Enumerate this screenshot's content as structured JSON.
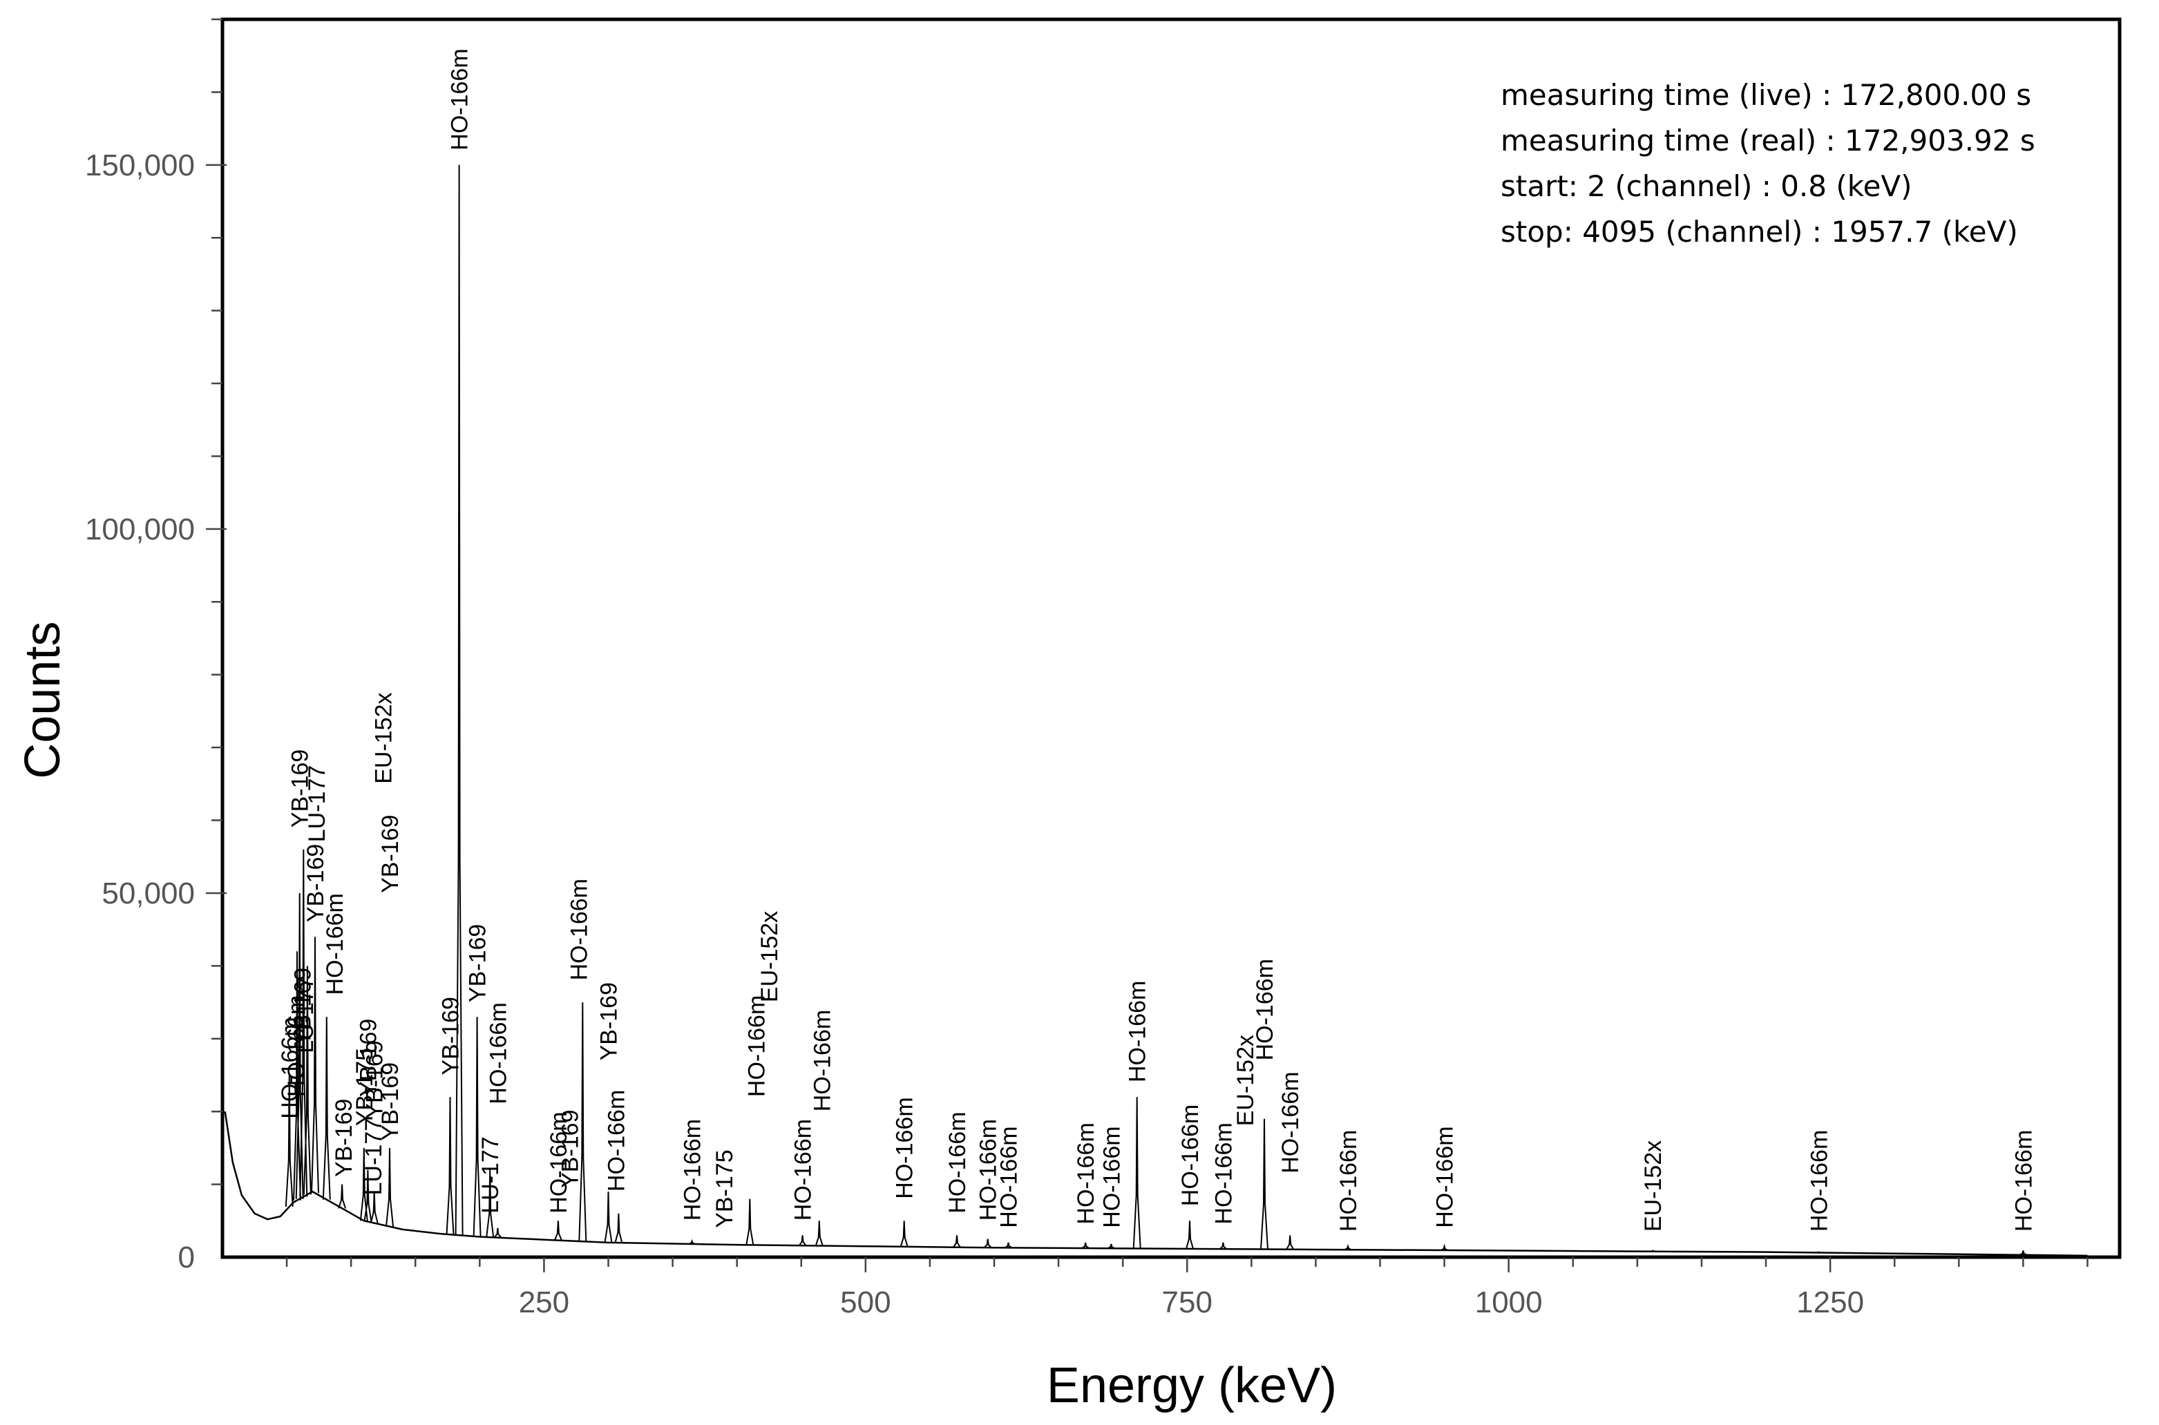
{
  "chart_data": {
    "type": "line",
    "title": "",
    "xlabel": "Energy (keV)",
    "ylabel": "Counts",
    "xlim": [
      0,
      1475
    ],
    "ylim": [
      0,
      170000
    ],
    "x_ticks": [
      250,
      500,
      750,
      1000,
      1250
    ],
    "x_tick_labels": [
      "250",
      "500",
      "750",
      "1000",
      "1250"
    ],
    "y_ticks": [
      0,
      50000,
      100000,
      150000
    ],
    "y_tick_labels": [
      "0",
      "50,000",
      "100,000",
      "150,000"
    ],
    "y_minor_step": 10000,
    "grid": false,
    "info": [
      "measuring time (live) : 172,800.00 s",
      "measuring time (real) : 172,903.92 s",
      "start: 2 (channel) : 0.8 (keV)",
      "stop: 4095 (channel) : 1957.7 (keV)"
    ],
    "baseline": [
      {
        "x": 2,
        "y": 20000
      },
      {
        "x": 8,
        "y": 13000
      },
      {
        "x": 15,
        "y": 8500
      },
      {
        "x": 25,
        "y": 6000
      },
      {
        "x": 35,
        "y": 5200
      },
      {
        "x": 45,
        "y": 5600
      },
      {
        "x": 55,
        "y": 7500
      },
      {
        "x": 70,
        "y": 9000
      },
      {
        "x": 90,
        "y": 7000
      },
      {
        "x": 110,
        "y": 5000
      },
      {
        "x": 140,
        "y": 3800
      },
      {
        "x": 170,
        "y": 3200
      },
      {
        "x": 200,
        "y": 2800
      },
      {
        "x": 250,
        "y": 2400
      },
      {
        "x": 300,
        "y": 2000
      },
      {
        "x": 400,
        "y": 1700
      },
      {
        "x": 500,
        "y": 1500
      },
      {
        "x": 600,
        "y": 1300
      },
      {
        "x": 700,
        "y": 1200
      },
      {
        "x": 800,
        "y": 1100
      },
      {
        "x": 900,
        "y": 1000
      },
      {
        "x": 1000,
        "y": 900
      },
      {
        "x": 1100,
        "y": 800
      },
      {
        "x": 1200,
        "y": 700
      },
      {
        "x": 1300,
        "y": 500
      },
      {
        "x": 1400,
        "y": 300
      },
      {
        "x": 1450,
        "y": 200
      }
    ],
    "peaks": [
      {
        "x": 52,
        "y": 25000
      },
      {
        "x": 58,
        "y": 42000
      },
      {
        "x": 60,
        "y": 50000
      },
      {
        "x": 63,
        "y": 56000
      },
      {
        "x": 66,
        "y": 40000
      },
      {
        "x": 72,
        "y": 44000
      },
      {
        "x": 81,
        "y": 33000
      },
      {
        "x": 93,
        "y": 10000
      },
      {
        "x": 110,
        "y": 15000
      },
      {
        "x": 113,
        "y": 12000
      },
      {
        "x": 118,
        "y": 9000
      },
      {
        "x": 130,
        "y": 15000
      },
      {
        "x": 177,
        "y": 22000
      },
      {
        "x": 184,
        "y": 150000
      },
      {
        "x": 198,
        "y": 33000
      },
      {
        "x": 208,
        "y": 12000
      },
      {
        "x": 214,
        "y": 4000
      },
      {
        "x": 261,
        "y": 5000
      },
      {
        "x": 280,
        "y": 35000
      },
      {
        "x": 300,
        "y": 9000
      },
      {
        "x": 308,
        "y": 6000
      },
      {
        "x": 365,
        "y": 2200
      },
      {
        "x": 410,
        "y": 8000
      },
      {
        "x": 451,
        "y": 3000
      },
      {
        "x": 464,
        "y": 5000
      },
      {
        "x": 530,
        "y": 5000
      },
      {
        "x": 571,
        "y": 3000
      },
      {
        "x": 595,
        "y": 2500
      },
      {
        "x": 611,
        "y": 2000
      },
      {
        "x": 671,
        "y": 2000
      },
      {
        "x": 691,
        "y": 1800
      },
      {
        "x": 711,
        "y": 22000
      },
      {
        "x": 752,
        "y": 5000
      },
      {
        "x": 778,
        "y": 2000
      },
      {
        "x": 810,
        "y": 19000
      },
      {
        "x": 830,
        "y": 3000
      },
      {
        "x": 875,
        "y": 1500
      },
      {
        "x": 950,
        "y": 1500
      },
      {
        "x": 1112,
        "y": 900
      },
      {
        "x": 1241,
        "y": 700
      },
      {
        "x": 1400,
        "y": 900
      }
    ],
    "peak_labels": [
      {
        "text": "YB-169",
        "x": 60,
        "y": 59000
      },
      {
        "text": "LU-177",
        "x": 73,
        "y": 57000
      },
      {
        "text": "YB-169",
        "x": 72,
        "y": 46000
      },
      {
        "text": "HO-166m",
        "x": 52,
        "y": 19000
      },
      {
        "text": "HO-166m",
        "x": 57,
        "y": 22000
      },
      {
        "text": "YB-169",
        "x": 62,
        "y": 29000
      },
      {
        "text": "LU-177",
        "x": 64,
        "y": 28000
      },
      {
        "text": "HO-166m",
        "x": 87,
        "y": 36000
      },
      {
        "text": "YB-169",
        "x": 94,
        "y": 11000
      },
      {
        "text": "YB-169",
        "x": 113,
        "y": 22000
      },
      {
        "text": "YB-175",
        "x": 110,
        "y": 18000
      },
      {
        "text": "YB-169",
        "x": 118,
        "y": 19000
      },
      {
        "text": "LU-177",
        "x": 117,
        "y": 8500
      },
      {
        "text": "YB-169",
        "x": 130,
        "y": 16000
      },
      {
        "text": "YB-169",
        "x": 130,
        "y": 50000
      },
      {
        "text": "EU-152x",
        "x": 125,
        "y": 65000
      },
      {
        "text": "YB-169",
        "x": 177,
        "y": 25000
      },
      {
        "text": "HO-166m",
        "x": 184,
        "y": 152000
      },
      {
        "text": "YB-169",
        "x": 198,
        "y": 35000
      },
      {
        "text": "HO-166m",
        "x": 214,
        "y": 21000
      },
      {
        "text": "LU-177",
        "x": 208,
        "y": 6000
      },
      {
        "text": "HO-166m",
        "x": 261,
        "y": 6000
      },
      {
        "text": "YB-169",
        "x": 270,
        "y": 9500
      },
      {
        "text": "HO-166m",
        "x": 277,
        "y": 38000
      },
      {
        "text": "YB-169",
        "x": 300,
        "y": 27000
      },
      {
        "text": "HO-166m",
        "x": 306,
        "y": 9000
      },
      {
        "text": "HO-166m",
        "x": 365,
        "y": 5000
      },
      {
        "text": "YB-175",
        "x": 390,
        "y": 4000
      },
      {
        "text": "HO-166m",
        "x": 415,
        "y": 22000
      },
      {
        "text": "EU-152x",
        "x": 425,
        "y": 35000
      },
      {
        "text": "HO-166m",
        "x": 451,
        "y": 5000
      },
      {
        "text": "HO-166m",
        "x": 466,
        "y": 20000
      },
      {
        "text": "HO-166m",
        "x": 530,
        "y": 8000
      },
      {
        "text": "HO-166m",
        "x": 571,
        "y": 6000
      },
      {
        "text": "HO-166m",
        "x": 595,
        "y": 5000
      },
      {
        "text": "HO-166m",
        "x": 611,
        "y": 4000
      },
      {
        "text": "HO-166m",
        "x": 671,
        "y": 4500
      },
      {
        "text": "HO-166m",
        "x": 691,
        "y": 4000
      },
      {
        "text": "HO-166m",
        "x": 711,
        "y": 24000
      },
      {
        "text": "HO-166m",
        "x": 752,
        "y": 7000
      },
      {
        "text": "HO-166m",
        "x": 778,
        "y": 4500
      },
      {
        "text": "EU-152x",
        "x": 795,
        "y": 18000
      },
      {
        "text": "HO-166m",
        "x": 810,
        "y": 27000
      },
      {
        "text": "HO-166m",
        "x": 830,
        "y": 11500
      },
      {
        "text": "HO-166m",
        "x": 875,
        "y": 3500
      },
      {
        "text": "HO-166m",
        "x": 950,
        "y": 4000
      },
      {
        "text": "EU-152x",
        "x": 1112,
        "y": 3500
      },
      {
        "text": "HO-166m",
        "x": 1241,
        "y": 3500
      },
      {
        "text": "HO-166m",
        "x": 1400,
        "y": 3500
      }
    ]
  },
  "style": {
    "line_color": "#000000",
    "axis_color": "#000000",
    "tick_label_color": "#555555"
  }
}
